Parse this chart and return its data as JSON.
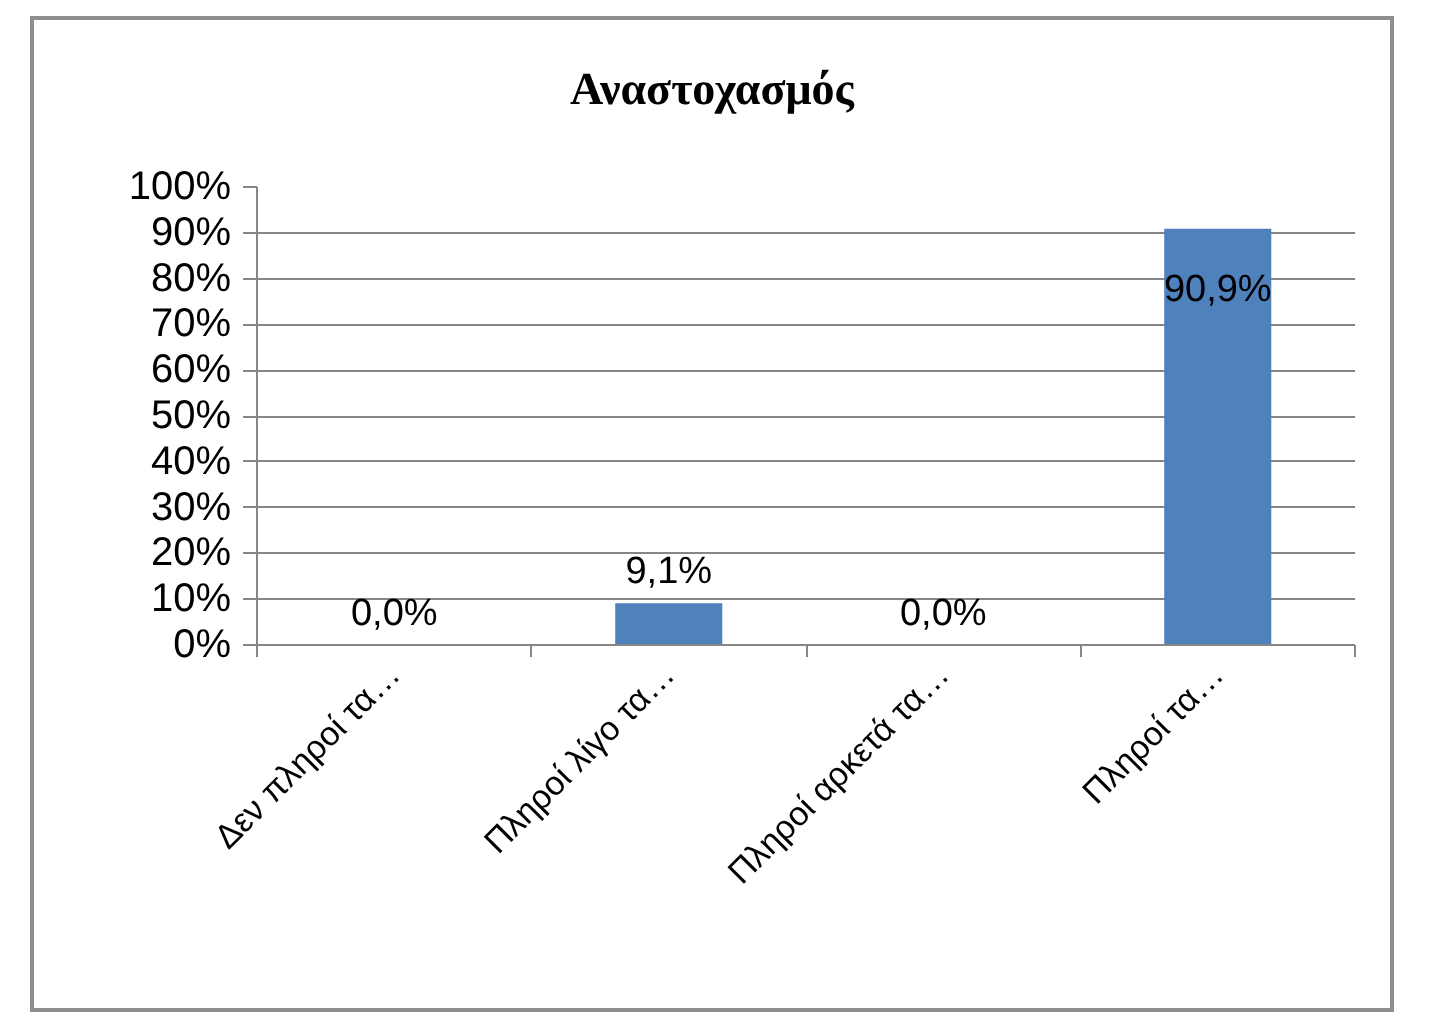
{
  "chart_data": {
    "type": "bar",
    "title": "Αναστοχασμός",
    "categories": [
      "Δεν πληροί τα…",
      "Πληροί λίγο τα…",
      "Πληροί αρκετά τα…",
      "Πληροί τα…"
    ],
    "values": [
      0,
      9.1,
      0,
      90.9
    ],
    "value_labels": [
      "0,0%",
      "9,1%",
      "0,0%",
      "90,9%"
    ],
    "color": "#4f81bd",
    "ylim": [
      0,
      100
    ],
    "yticks": [
      {
        "value": 0,
        "label": "0%"
      },
      {
        "value": 10,
        "label": "10%"
      },
      {
        "value": 20,
        "label": "20%"
      },
      {
        "value": 30,
        "label": "30%"
      },
      {
        "value": 40,
        "label": "40%"
      },
      {
        "value": 50,
        "label": "50%"
      },
      {
        "value": 60,
        "label": "60%"
      },
      {
        "value": 70,
        "label": "70%"
      },
      {
        "value": 80,
        "label": "80%"
      },
      {
        "value": 90,
        "label": "90%"
      },
      {
        "value": 100,
        "label": "100%"
      }
    ],
    "grid": "y"
  }
}
